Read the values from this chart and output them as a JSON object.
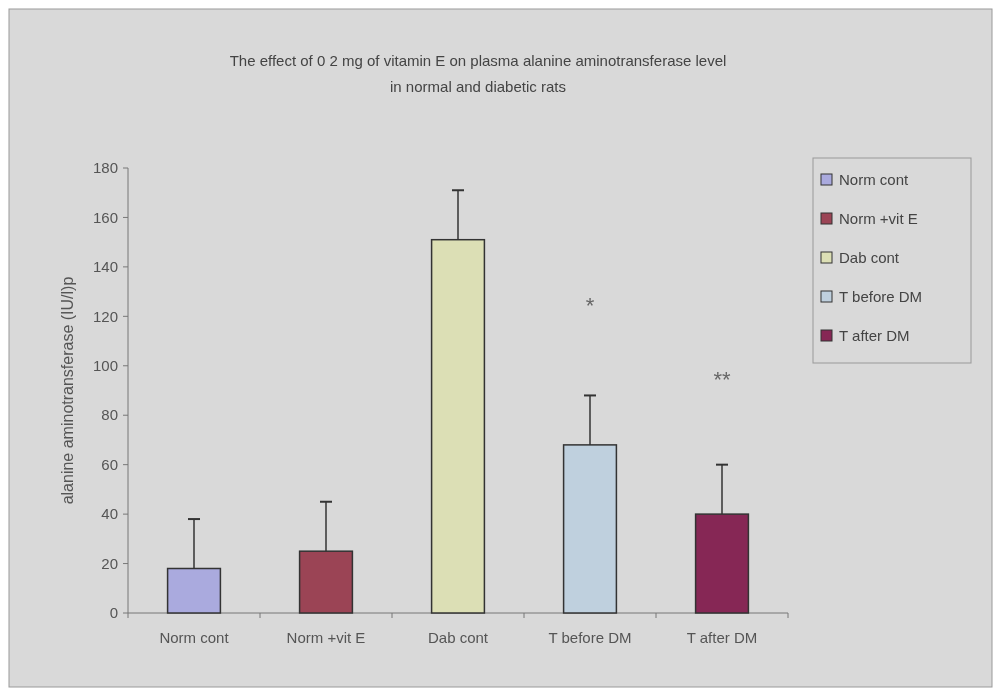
{
  "chart_data": {
    "type": "bar",
    "title": "The effect of 0 2 mg of vitamin E on plasma alanine aminotransferase level\nin normal and diabetic rats",
    "ylabel": "alanine aminotransferase (IU/l)p",
    "categories": [
      "Norm cont",
      "Norm +vit E",
      "Dab cont",
      "T before DM",
      "T after DM"
    ],
    "series": [
      {
        "name": "Norm cont",
        "color": "#aaaade",
        "values": [
          18,
          null,
          null,
          null,
          null
        ],
        "errors": [
          [
            18,
            38
          ],
          null,
          null,
          null,
          null
        ]
      },
      {
        "name": "Norm +vit E",
        "color": "#9b4455",
        "values": [
          null,
          25,
          null,
          null,
          null
        ],
        "errors": [
          null,
          [
            25,
            45
          ],
          null,
          null,
          null
        ]
      },
      {
        "name": "Dab cont",
        "color": "#dcdfb5",
        "values": [
          null,
          null,
          151,
          null,
          null
        ],
        "errors": [
          null,
          null,
          [
            151,
            171
          ],
          null,
          null
        ]
      },
      {
        "name": "T before DM",
        "color": "#bfd0de",
        "values": [
          null,
          null,
          null,
          68,
          null
        ],
        "errors": [
          null,
          null,
          null,
          [
            68,
            88
          ],
          null
        ]
      },
      {
        "name": "T after DM",
        "color": "#862755",
        "values": [
          null,
          null,
          null,
          null,
          40
        ],
        "errors": [
          null,
          null,
          null,
          null,
          [
            40,
            60
          ]
        ]
      }
    ],
    "ylim": [
      0,
      180
    ],
    "yticks": [
      0,
      20,
      40,
      60,
      80,
      100,
      120,
      140,
      160,
      180
    ],
    "legend": "right",
    "annotations": [
      "*",
      "**"
    ]
  }
}
